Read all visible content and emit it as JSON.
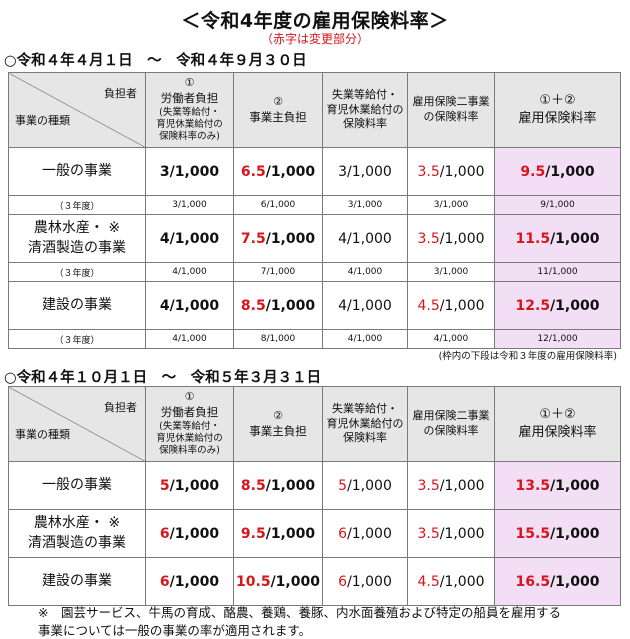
{
  "title": "＜令和4年度の雇用保険料率＞",
  "subtitle": "（赤字は変更部分）",
  "sections": [
    {
      "heading": "○令和４年４月１日　～　令和４年９月３０日",
      "rows": [
        {
          "category": "一般の事業",
          "worker": {
            "red": "",
            "black": "3/1,000"
          },
          "employer": {
            "red": "6.5",
            "black": "/1,000"
          },
          "unemployment": {
            "red": "",
            "black": "3/1,000"
          },
          "two_projects": {
            "red": "3.5",
            "black": "/1,000"
          },
          "total": {
            "red": "9.5",
            "black": "/1,000"
          },
          "prev": {
            "label": "（３年度）",
            "worker": "3/1,000",
            "employer": "6/1,000",
            "unemployment": "3/1,000",
            "two_projects": "3/1,000",
            "total": "9/1,000"
          }
        },
        {
          "category": "農林水産・ ※\n清酒製造の事業",
          "worker": {
            "red": "",
            "black": "4/1,000"
          },
          "employer": {
            "red": "7.5",
            "black": "/1,000"
          },
          "unemployment": {
            "red": "",
            "black": "4/1,000"
          },
          "two_projects": {
            "red": "3.5",
            "black": "/1,000"
          },
          "total": {
            "red": "11.5",
            "black": "/1,000"
          },
          "prev": {
            "label": "（３年度）",
            "worker": "4/1,000",
            "employer": "7/1,000",
            "unemployment": "4/1,000",
            "two_projects": "3/1,000",
            "total": "11/1,000"
          }
        },
        {
          "category": "建設の事業",
          "worker": {
            "red": "",
            "black": "4/1,000"
          },
          "employer": {
            "red": "8.5",
            "black": "/1,000"
          },
          "unemployment": {
            "red": "",
            "black": "4/1,000"
          },
          "two_projects": {
            "red": "4.5",
            "black": "/1,000"
          },
          "total": {
            "red": "12.5",
            "black": "/1,000"
          },
          "prev": {
            "label": "（３年度）",
            "worker": "4/1,000",
            "employer": "8/1,000",
            "unemployment": "4/1,000",
            "two_projects": "4/1,000",
            "total": "12/1,000"
          }
        }
      ],
      "note": "(枠内の下段は令和３年度の雇用保険料率)"
    },
    {
      "heading": "○令和４年１０月１日　～　令和５年３月３１日",
      "rows": [
        {
          "category": "一般の事業",
          "worker": {
            "red": "5",
            "black": "/1,000"
          },
          "employer": {
            "red": "8.5",
            "black": "/1,000"
          },
          "unemployment": {
            "red": "5",
            "black": "/1,000"
          },
          "two_projects": {
            "red": "3.5",
            "black": "/1,000"
          },
          "total": {
            "red": "13.5",
            "black": "/1,000"
          }
        },
        {
          "category": "農林水産・ ※\n清酒製造の事業",
          "worker": {
            "red": "6",
            "black": "/1,000"
          },
          "employer": {
            "red": "9.5",
            "black": "/1,000"
          },
          "unemployment": {
            "red": "6",
            "black": "/1,000"
          },
          "two_projects": {
            "red": "3.5",
            "black": "/1,000"
          },
          "total": {
            "red": "15.5",
            "black": "/1,000"
          }
        },
        {
          "category": "建設の事業",
          "worker": {
            "red": "6",
            "black": "/1,000"
          },
          "employer": {
            "red": "10.5",
            "black": "/1,000"
          },
          "unemployment": {
            "red": "6",
            "black": "/1,000"
          },
          "two_projects": {
            "red": "4.5",
            "black": "/1,000"
          },
          "total": {
            "red": "16.5",
            "black": "/1,000"
          }
        }
      ]
    }
  ],
  "header": {
    "burden_label": "負担者",
    "category_label": "事業の種類",
    "worker_num": "①",
    "worker_title": "労働者負担",
    "worker_note": "(失業等給付・\n育児休業給付の\n保険料率のみ)",
    "employer_num": "②",
    "employer_title": "事業主負担",
    "unemployment_title": "失業等給付・\n育児休業給付の\n保険料率",
    "two_projects_title": "雇用保険二事業\nの保険料率",
    "total_num": "①＋②",
    "total_title": "雇用保険料率"
  },
  "footer": {
    "note": "※　園芸サービス、牛馬の育成、酪農、養鶏、養豚、内水面養殖および特定の船員を雇用する\n事業については一般の事業の率が適用されます。"
  },
  "colors": {
    "red": "#d9141b",
    "header_bg": "#e6e6e6",
    "total_bg": "#f2dff6",
    "border": "#7a7a7a"
  }
}
